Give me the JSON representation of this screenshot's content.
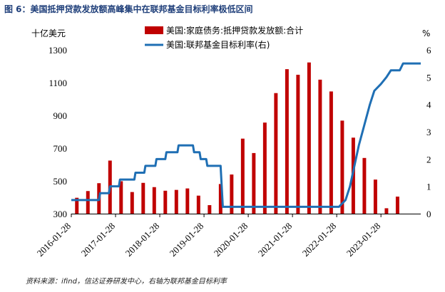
{
  "figure": {
    "title": "图 6：美国抵押贷款发放额高峰集中在联邦基金目标利率极低区间",
    "source": "资料来源：ifind，信达证券研发中心，右轴为联邦基金目标利率"
  },
  "chart_data": {
    "type": "bar+line",
    "left_unit": "十亿美元",
    "right_unit": "%",
    "left_ylim": [
      300,
      1300
    ],
    "left_ticks": [
      300,
      500,
      700,
      900,
      1100,
      1300
    ],
    "right_ylim": [
      0,
      6
    ],
    "right_ticks": [
      0,
      1,
      2,
      3,
      4,
      5,
      6
    ],
    "x_tick_labels": [
      "2016-01-28",
      "2017-01-28",
      "2018-01-28",
      "2019-01-28",
      "2020-01-28",
      "2021-01-28",
      "2022-01-28",
      "2023-01-28"
    ],
    "x_tick_positions": [
      0,
      4,
      8,
      12,
      16,
      20,
      24,
      28
    ],
    "x_range": [
      0,
      31.6
    ],
    "legend": {
      "placement": "top-center"
    },
    "series": [
      {
        "name": "美国:家庭债务:抵押贷款发放额:合计",
        "kind": "bar",
        "axis": "left",
        "color": "#c00000",
        "x": [
          0.5,
          1.5,
          2.5,
          3.5,
          4.5,
          5.5,
          6.5,
          7.5,
          8.5,
          9.5,
          10.5,
          11.5,
          12.5,
          13.5,
          14.5,
          15.5,
          16.5,
          17.5,
          18.5,
          19.5,
          20.5,
          21.5,
          22.5,
          23.5,
          24.5,
          25.5,
          26.5,
          27.5,
          28.5,
          29.5
        ],
        "values": [
          397,
          438,
          486,
          624,
          498,
          432,
          488,
          462,
          440,
          445,
          454,
          410,
          352,
          481,
          539,
          758,
          670,
          856,
          1036,
          1182,
          1148,
          1223,
          1118,
          1046,
          868,
          764,
          640,
          508,
          333,
          404
        ]
      },
      {
        "name": "美国:联邦基金目标利率(右)",
        "kind": "line",
        "axis": "right",
        "color": "#1f6fb4",
        "points": [
          [
            0,
            0.5
          ],
          [
            0.5,
            0.5
          ],
          [
            1.5,
            0.5
          ],
          [
            2.5,
            0.5
          ],
          [
            2.6,
            0.75
          ],
          [
            3.4,
            0.75
          ],
          [
            3.5,
            1.0
          ],
          [
            4.3,
            1.0
          ],
          [
            4.4,
            1.25
          ],
          [
            5.7,
            1.25
          ],
          [
            5.8,
            1.5
          ],
          [
            6.6,
            1.5
          ],
          [
            6.7,
            1.75
          ],
          [
            7.6,
            1.75
          ],
          [
            7.7,
            2.0
          ],
          [
            8.5,
            2.0
          ],
          [
            8.6,
            2.25
          ],
          [
            9.6,
            2.25
          ],
          [
            9.7,
            2.5
          ],
          [
            11.0,
            2.5
          ],
          [
            11.1,
            2.25
          ],
          [
            11.6,
            2.25
          ],
          [
            11.7,
            2.0
          ],
          [
            12.2,
            2.0
          ],
          [
            12.3,
            1.75
          ],
          [
            13.5,
            1.75
          ],
          [
            13.6,
            1.0
          ],
          [
            13.7,
            0.25
          ],
          [
            16.0,
            0.25
          ],
          [
            20.0,
            0.25
          ],
          [
            24.2,
            0.25
          ],
          [
            24.8,
            0.5
          ],
          [
            25.2,
            1.0
          ],
          [
            25.6,
            1.75
          ],
          [
            26.0,
            2.5
          ],
          [
            26.5,
            3.25
          ],
          [
            27.0,
            4.0
          ],
          [
            27.4,
            4.5
          ],
          [
            28.0,
            4.75
          ],
          [
            28.5,
            5.0
          ],
          [
            28.9,
            5.25
          ],
          [
            29.7,
            5.25
          ],
          [
            30.0,
            5.5
          ],
          [
            31.6,
            5.5
          ]
        ]
      }
    ]
  }
}
